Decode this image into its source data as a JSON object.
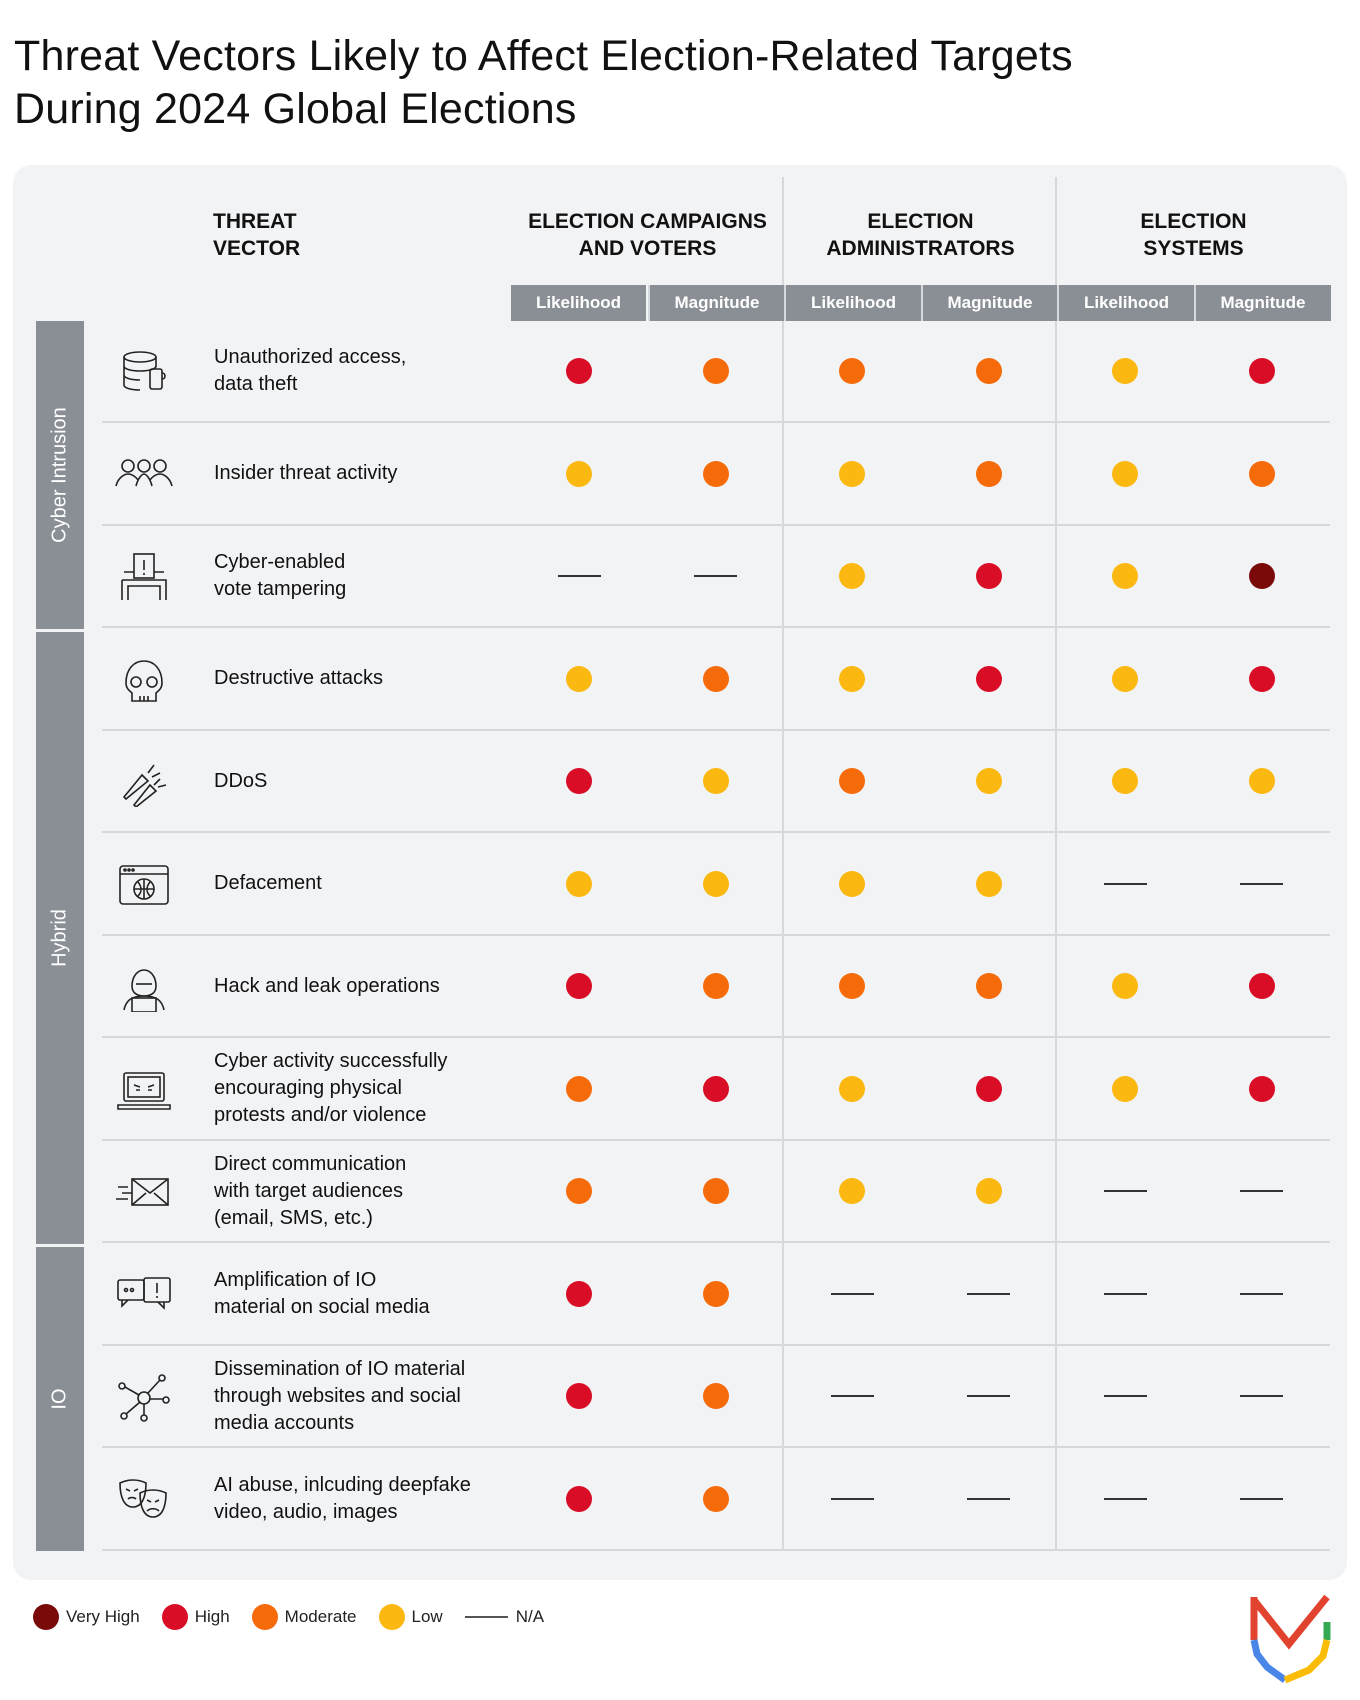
{
  "title_line1": "Threat Vectors Likely to Affect Election-Related Targets",
  "title_line2": "During 2024 Global Elections",
  "header": {
    "vector": [
      "THREAT",
      "VECTOR"
    ],
    "groups": [
      {
        "line1": "ELECTION CAMPAIGNS",
        "line2": "AND VOTERS"
      },
      {
        "line1": "ELECTION",
        "line2": "ADMINISTRATORS"
      },
      {
        "line1": "ELECTION",
        "line2": "SYSTEMS"
      }
    ],
    "sub": [
      "Likelihood",
      "Magnitude",
      "Likelihood",
      "Magnitude",
      "Likelihood",
      "Magnitude"
    ]
  },
  "categories": [
    {
      "name": "Cyber Intrusion",
      "rows": 3
    },
    {
      "name": "Hybrid",
      "rows": 6
    },
    {
      "name": "IO",
      "rows": 3
    }
  ],
  "colors": {
    "very_high": "#7a0a0a",
    "high": "#d90d25",
    "moderate": "#f56b0a",
    "low": "#fbb811",
    "na": "#333333",
    "bar": "#8a8f96"
  },
  "rows": [
    {
      "icon": "database-phone-icon",
      "lines": [
        "Unauthorized access,",
        "data theft"
      ],
      "values": [
        "high",
        "moderate",
        "moderate",
        "moderate",
        "low",
        "high"
      ]
    },
    {
      "icon": "people-group-icon",
      "lines": [
        "Insider threat activity"
      ],
      "values": [
        "low",
        "moderate",
        "low",
        "moderate",
        "low",
        "moderate"
      ]
    },
    {
      "icon": "ballot-box-icon",
      "lines": [
        "Cyber-enabled",
        "vote tampering"
      ],
      "values": [
        "na",
        "na",
        "low",
        "high",
        "low",
        "very_high"
      ]
    },
    {
      "icon": "skull-icon",
      "lines": [
        "Destructive attacks"
      ],
      "values": [
        "low",
        "moderate",
        "low",
        "high",
        "low",
        "high"
      ]
    },
    {
      "icon": "rockets-icon",
      "lines": [
        "DDoS"
      ],
      "values": [
        "high",
        "low",
        "moderate",
        "low",
        "low",
        "low"
      ]
    },
    {
      "icon": "browser-globe-icon",
      "lines": [
        "Defacement"
      ],
      "values": [
        "low",
        "low",
        "low",
        "low",
        "na",
        "na"
      ]
    },
    {
      "icon": "hacker-icon",
      "lines": [
        "Hack and leak operations"
      ],
      "values": [
        "high",
        "moderate",
        "moderate",
        "moderate",
        "low",
        "high"
      ]
    },
    {
      "icon": "laptop-angry-icon",
      "lines": [
        "Cyber activity successfully",
        "encouraging physical",
        "protests and/or violence"
      ],
      "values": [
        "moderate",
        "high",
        "low",
        "high",
        "low",
        "high"
      ]
    },
    {
      "icon": "envelope-icon",
      "lines": [
        "Direct communication",
        "with target audiences",
        "(email, SMS, etc.)"
      ],
      "values": [
        "moderate",
        "moderate",
        "low",
        "low",
        "na",
        "na"
      ]
    },
    {
      "icon": "chat-bubbles-icon",
      "lines": [
        "Amplification of IO",
        "material on social media"
      ],
      "values": [
        "high",
        "moderate",
        "na",
        "na",
        "na",
        "na"
      ]
    },
    {
      "icon": "network-icon",
      "lines": [
        "Dissemination of IO material",
        "through websites and social",
        "media accounts"
      ],
      "values": [
        "high",
        "moderate",
        "na",
        "na",
        "na",
        "na"
      ]
    },
    {
      "icon": "theater-masks-icon",
      "lines": [
        "AI abuse, inlcuding deepfake",
        "video, audio, images"
      ],
      "values": [
        "high",
        "moderate",
        "na",
        "na",
        "na",
        "na"
      ]
    }
  ],
  "legend": [
    {
      "key": "very_high",
      "label": "Very High"
    },
    {
      "key": "high",
      "label": "High"
    },
    {
      "key": "moderate",
      "label": "Moderate"
    },
    {
      "key": "low",
      "label": "Low"
    },
    {
      "key": "na",
      "label": "N/A"
    }
  ]
}
